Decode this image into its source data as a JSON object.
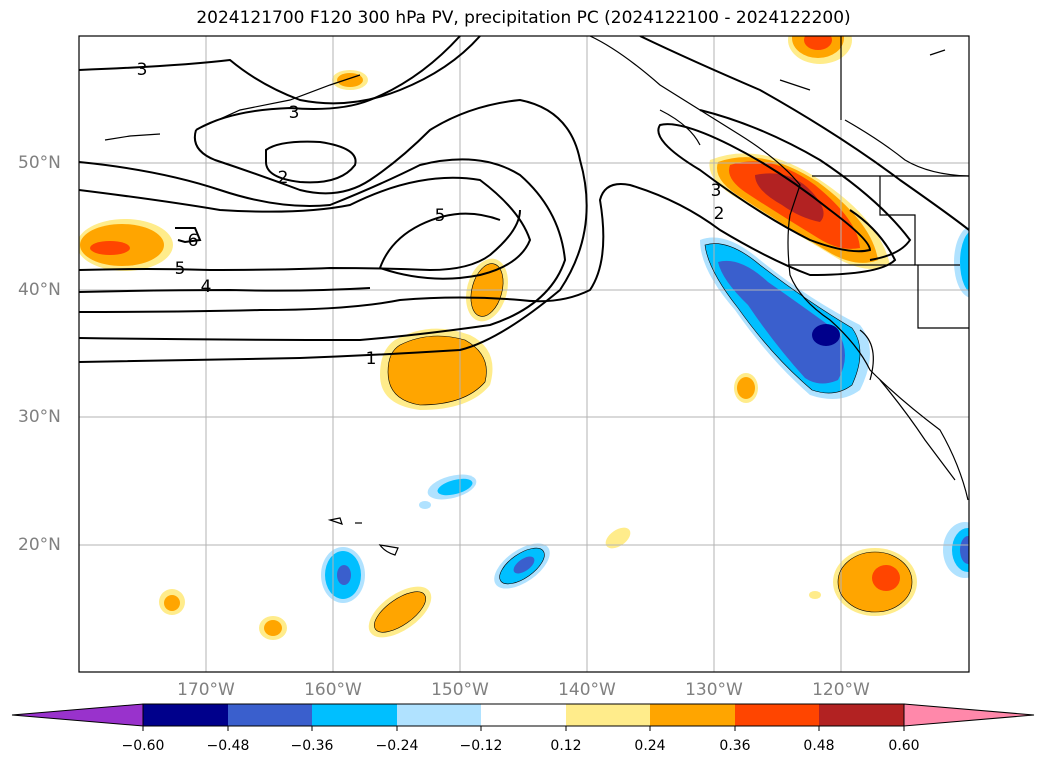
{
  "title": "2024121700 F120 300 hPa PV, precipitation PC (2024122100 - 2024122200)",
  "lat_labels": [
    "50°N",
    "40°N",
    "30°N",
    "20°N"
  ],
  "lon_labels": [
    "170°W",
    "160°W",
    "150°W",
    "140°W",
    "130°W",
    "120°W"
  ],
  "contour_labels": [
    "3",
    "3",
    "2",
    "6",
    "5",
    "5",
    "4",
    "1",
    "3",
    "2"
  ],
  "colorbar": {
    "ticks": [
      "−0.60",
      "−0.48",
      "−0.36",
      "−0.24",
      "−0.12",
      "0.12",
      "0.24",
      "0.36",
      "0.48",
      "0.60"
    ],
    "colors": [
      "#9932cc",
      "#00008b",
      "#3a5fcd",
      "#00bfff",
      "#b0e2ff",
      "#ffffff",
      "#ffec8b",
      "#ffa500",
      "#ff4500",
      "#b22222",
      "#ff88aa"
    ]
  }
}
